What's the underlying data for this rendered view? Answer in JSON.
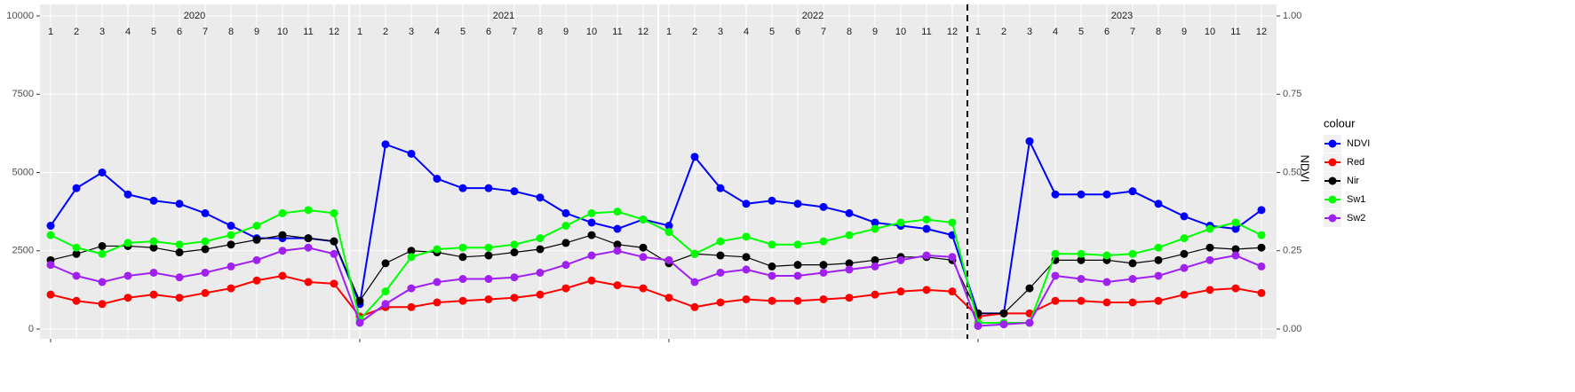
{
  "chart_data": {
    "type": "line",
    "year_labels": [
      "2020",
      "2021",
      "2022",
      "2023"
    ],
    "month_labels": [
      "1",
      "2",
      "3",
      "4",
      "5",
      "6",
      "7",
      "8",
      "9",
      "10",
      "11",
      "12"
    ],
    "x": [
      "2020-01",
      "2020-02",
      "2020-03",
      "2020-04",
      "2020-05",
      "2020-06",
      "2020-07",
      "2020-08",
      "2020-09",
      "2020-10",
      "2020-11",
      "2020-12",
      "2021-01",
      "2021-02",
      "2021-03",
      "2021-04",
      "2021-05",
      "2021-06",
      "2021-07",
      "2021-08",
      "2021-09",
      "2021-10",
      "2021-11",
      "2021-12",
      "2022-01",
      "2022-02",
      "2022-03",
      "2022-04",
      "2022-05",
      "2022-06",
      "2022-07",
      "2022-08",
      "2022-09",
      "2022-10",
      "2022-11",
      "2022-12",
      "2023-01",
      "2023-02",
      "2023-03",
      "2023-04",
      "2023-05",
      "2023-06",
      "2023-07",
      "2023-08",
      "2023-09",
      "2023-10",
      "2023-11",
      "2023-12"
    ],
    "ylim": [
      0,
      10000
    ],
    "yticks": [
      0,
      2500,
      5000,
      7500,
      10000
    ],
    "y2lim": [
      0,
      1
    ],
    "y2ticks": [
      {
        "value": 0,
        "label": "0.00"
      },
      {
        "value": 0.25,
        "label": "0.25"
      },
      {
        "value": 0.5,
        "label": "0.50"
      },
      {
        "value": 0.75,
        "label": "0.75"
      },
      {
        "value": 1,
        "label": "1.00"
      }
    ],
    "y2_label": "NDVI",
    "legend_title": "colour",
    "grid": true,
    "series": [
      {
        "name": "NDVI",
        "color": "#0000ff",
        "axis": "y2",
        "values": [
          0.33,
          0.45,
          0.5,
          0.43,
          0.41,
          0.4,
          0.37,
          0.33,
          0.29,
          0.29,
          0.29,
          0.28,
          0.08,
          0.59,
          0.56,
          0.48,
          0.45,
          0.45,
          0.44,
          0.42,
          0.37,
          0.34,
          0.32,
          0.35,
          0.33,
          0.55,
          0.45,
          0.4,
          0.41,
          0.4,
          0.39,
          0.37,
          0.34,
          0.33,
          0.32,
          0.3,
          0.05,
          0.05,
          0.6,
          0.43,
          0.43,
          0.43,
          0.44,
          0.4,
          0.36,
          0.33,
          0.32,
          0.38
        ]
      },
      {
        "name": "Red",
        "color": "#ff0000",
        "values": [
          1100,
          900,
          800,
          1000,
          1100,
          1000,
          1150,
          1300,
          1550,
          1700,
          1500,
          1450,
          400,
          700,
          700,
          850,
          900,
          950,
          1000,
          1100,
          1300,
          1550,
          1400,
          1300,
          1000,
          700,
          850,
          950,
          900,
          900,
          950,
          1000,
          1100,
          1200,
          1250,
          1200,
          400,
          500,
          500,
          900,
          900,
          850,
          850,
          900,
          1100,
          1250,
          1300,
          1150
        ]
      },
      {
        "name": "Nir",
        "color": "#000000",
        "values": [
          2200,
          2400,
          2650,
          2650,
          2600,
          2450,
          2550,
          2700,
          2850,
          3000,
          2900,
          2800,
          900,
          2100,
          2500,
          2450,
          2300,
          2350,
          2450,
          2550,
          2750,
          3000,
          2700,
          2600,
          2100,
          2400,
          2350,
          2300,
          2000,
          2050,
          2050,
          2100,
          2200,
          2300,
          2300,
          2200,
          500,
          500,
          1300,
          2200,
          2200,
          2200,
          2100,
          2200,
          2400,
          2600,
          2550,
          2600
        ]
      },
      {
        "name": "Sw1",
        "color": "#00ff00",
        "values": [
          3000,
          2600,
          2400,
          2750,
          2800,
          2700,
          2800,
          3000,
          3300,
          3700,
          3800,
          3700,
          300,
          1200,
          2300,
          2550,
          2600,
          2600,
          2700,
          2900,
          3300,
          3700,
          3750,
          3500,
          3100,
          2400,
          2800,
          2950,
          2700,
          2700,
          2800,
          3000,
          3200,
          3400,
          3500,
          3400,
          200,
          200,
          200,
          2400,
          2400,
          2350,
          2400,
          2600,
          2900,
          3200,
          3400,
          3000
        ]
      },
      {
        "name": "Sw2",
        "color": "#a020f0",
        "values": [
          2050,
          1700,
          1500,
          1700,
          1800,
          1650,
          1800,
          2000,
          2200,
          2500,
          2600,
          2400,
          200,
          800,
          1300,
          1500,
          1600,
          1600,
          1650,
          1800,
          2050,
          2350,
          2500,
          2300,
          2200,
          1500,
          1800,
          1900,
          1700,
          1700,
          1800,
          1900,
          2000,
          2200,
          2350,
          2300,
          100,
          150,
          200,
          1700,
          1600,
          1500,
          1600,
          1700,
          1950,
          2200,
          2350,
          2000
        ]
      }
    ]
  }
}
